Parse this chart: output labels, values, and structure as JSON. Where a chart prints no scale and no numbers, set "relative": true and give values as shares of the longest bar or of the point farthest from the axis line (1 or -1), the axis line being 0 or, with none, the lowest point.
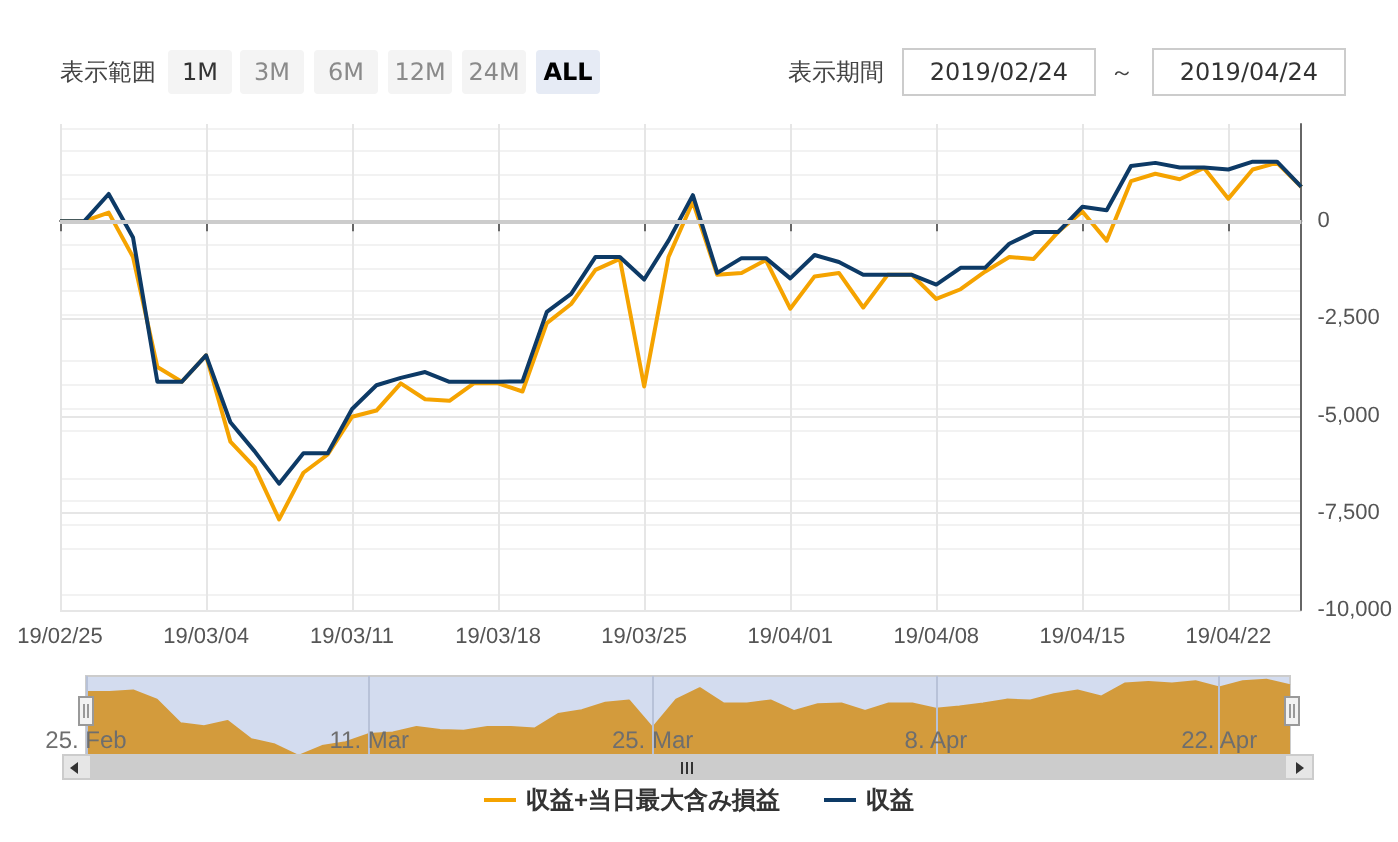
{
  "chart_data": [
    {
      "type": "line",
      "categories": [
        "19/02/25",
        null,
        null,
        null,
        null,
        null,
        "19/03/04",
        null,
        null,
        null,
        null,
        null,
        "19/03/11",
        null,
        null,
        null,
        null,
        null,
        "19/03/18",
        null,
        null,
        null,
        null,
        null,
        "19/03/25",
        null,
        null,
        null,
        null,
        null,
        "19/04/01",
        null,
        null,
        null,
        null,
        null,
        "19/04/08",
        null,
        null,
        null,
        null,
        null,
        "19/04/15",
        null,
        null,
        null,
        null,
        null,
        "19/04/22",
        null,
        null,
        null
      ],
      "series": [
        {
          "name": "収益+当日最大含み損益",
          "color": "#f5a300",
          "values": [
            0,
            0,
            220,
            -920,
            -3750,
            -4130,
            -3450,
            -5670,
            -6330,
            -7670,
            -6470,
            -6000,
            -5030,
            -4870,
            -4170,
            -4580,
            -4620,
            -4170,
            -4170,
            -4380,
            -2620,
            -2130,
            -1250,
            -970,
            -4250,
            -920,
            500,
            -1380,
            -1330,
            -1000,
            -2250,
            -1420,
            -1330,
            -2220,
            -1380,
            -1380,
            -2000,
            -1750,
            -1300,
            -920,
            -970,
            -280,
            250,
            -500,
            1030,
            1220,
            1080,
            1370,
            580,
            1330,
            1500,
            880
          ]
        },
        {
          "name": "収益",
          "color": "#0d3a66",
          "values": [
            0,
            0,
            700,
            -420,
            -4130,
            -4130,
            -3450,
            -5170,
            -5920,
            -6750,
            -5970,
            -5970,
            -4830,
            -4220,
            -4030,
            -3880,
            -4130,
            -4130,
            -4130,
            -4120,
            -2330,
            -1870,
            -920,
            -920,
            -1500,
            -500,
            670,
            -1330,
            -950,
            -950,
            -1470,
            -870,
            -1050,
            -1380,
            -1380,
            -1380,
            -1630,
            -1200,
            -1200,
            -580,
            -280,
            -280,
            370,
            280,
            1420,
            1500,
            1380,
            1380,
            1330,
            1530,
            1530,
            880
          ]
        }
      ],
      "ylim": [
        -10000,
        2500
      ],
      "yticks": [
        {
          "value": -10000,
          "label": "-10,000"
        },
        {
          "value": -7500,
          "label": "-7,500"
        },
        {
          "value": -5000,
          "label": "-5,000"
        },
        {
          "value": -2500,
          "label": "-2,500"
        },
        0
      ],
      "grid": true,
      "legend": "bottom",
      "marker": "none",
      "line_style": "solid",
      "ref_lines": [
        {
          "axis": "y",
          "value": 0,
          "color": "#cccccc"
        }
      ],
      "annotations": [
        "表示範囲",
        "1M",
        "3M",
        "6M",
        "12M",
        "24M",
        "ALL",
        "表示期間",
        "2019/02/24",
        "～",
        "2019/04/24"
      ]
    },
    {
      "type": "area",
      "relative": true,
      "color": "#d39b3c",
      "categories": [
        "25. Feb",
        null,
        null,
        null,
        null,
        null,
        null,
        null,
        null,
        null,
        null,
        null,
        "11. Mar",
        null,
        null,
        null,
        null,
        null,
        null,
        null,
        null,
        null,
        null,
        null,
        "25. Mar",
        null,
        null,
        null,
        null,
        null,
        null,
        null,
        null,
        null,
        null,
        null,
        "8. Apr",
        null,
        null,
        null,
        null,
        null,
        null,
        null,
        null,
        null,
        null,
        null,
        "22. Apr",
        null,
        null,
        null
      ],
      "values": [
        0.84,
        0.84,
        0.86,
        0.74,
        0.43,
        0.39,
        0.46,
        0.22,
        0.15,
        0,
        0.13,
        0.18,
        0.29,
        0.31,
        0.38,
        0.34,
        0.33,
        0.38,
        0.38,
        0.36,
        0.55,
        0.6,
        0.7,
        0.73,
        0.37,
        0.74,
        0.89,
        0.69,
        0.69,
        0.73,
        0.59,
        0.68,
        0.69,
        0.59,
        0.69,
        0.69,
        0.62,
        0.65,
        0.69,
        0.74,
        0.73,
        0.81,
        0.86,
        0.78,
        0.95,
        0.97,
        0.95,
        0.98,
        0.9,
        0.98,
        1,
        0.93
      ],
      "grid": "x",
      "legend": false
    }
  ]
}
